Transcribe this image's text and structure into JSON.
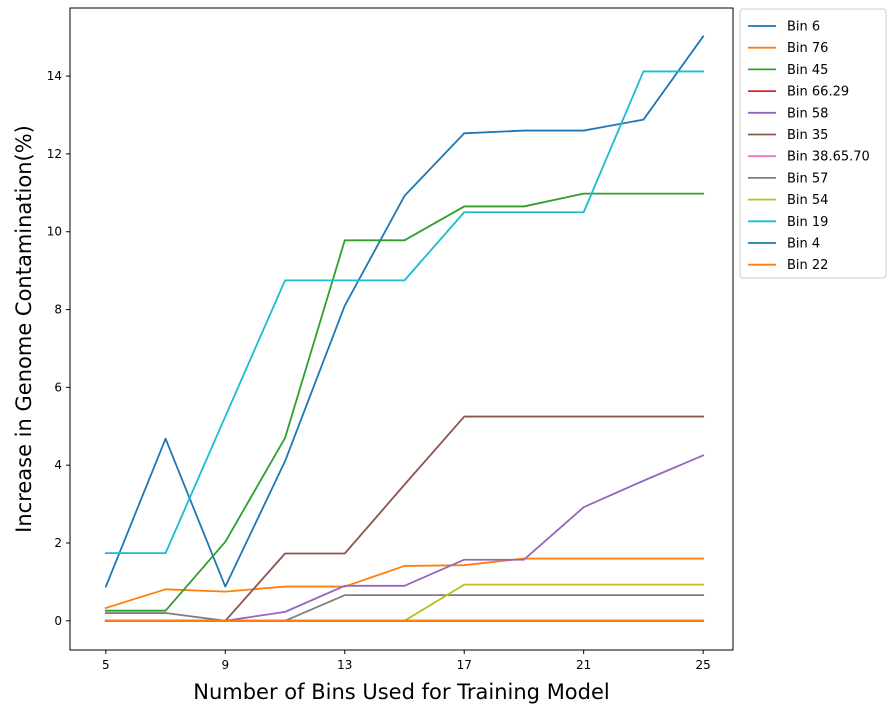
{
  "chart_data": {
    "type": "line",
    "title": "",
    "xlabel": "Number of Bins Used for Training Model",
    "ylabel": "Increase in Genome Contamination(%)",
    "x": [
      5,
      7,
      9,
      11,
      13,
      15,
      17,
      19,
      21,
      23,
      25
    ],
    "xticks": [
      5,
      9,
      13,
      17,
      21,
      25
    ],
    "yticks": [
      0,
      2,
      4,
      6,
      8,
      10,
      12,
      14
    ],
    "xlim": [
      3.8,
      26.0
    ],
    "ylim": [
      -0.75,
      15.75
    ],
    "grid": false,
    "legend_position": "outside-top-right",
    "series": [
      {
        "name": "Bin 6",
        "color": "#1f77b4",
        "values": [
          0.88,
          4.68,
          0.88,
          4.1,
          8.1,
          10.92,
          12.53,
          12.6,
          12.6,
          12.88,
          15.02
        ]
      },
      {
        "name": "Bin 76",
        "color": "#ff7f0e",
        "values": [
          0.33,
          0.81,
          0.75,
          0.88,
          0.88,
          1.41,
          1.43,
          1.6,
          1.6,
          1.6,
          1.6
        ]
      },
      {
        "name": "Bin 45",
        "color": "#2ca02c",
        "values": [
          0.26,
          0.26,
          2.03,
          4.7,
          9.78,
          9.78,
          10.65,
          10.65,
          10.98,
          10.98,
          10.98
        ]
      },
      {
        "name": "Bin 66.29",
        "color": "#d62728",
        "values": [
          0,
          0,
          0,
          0,
          0,
          0,
          0,
          0,
          0,
          0,
          0
        ]
      },
      {
        "name": "Bin 58",
        "color": "#9467bd",
        "values": [
          0,
          0,
          0,
          0.23,
          0.9,
          0.9,
          1.57,
          1.57,
          2.92,
          3.6,
          4.25
        ]
      },
      {
        "name": "Bin 35",
        "color": "#8c564b",
        "values": [
          0,
          0,
          0,
          1.73,
          1.73,
          3.5,
          5.25,
          5.25,
          5.25,
          5.25,
          5.25
        ]
      },
      {
        "name": "Bin 38.65.70",
        "color": "#e377c2",
        "values": [
          0,
          0,
          0,
          0,
          0,
          0,
          0,
          0,
          0,
          0,
          0
        ]
      },
      {
        "name": "Bin 57",
        "color": "#7f7f7f",
        "values": [
          0.2,
          0.2,
          0,
          0,
          0.66,
          0.66,
          0.66,
          0.66,
          0.66,
          0.66,
          0.66
        ]
      },
      {
        "name": "Bin 54",
        "color": "#bcbd22",
        "values": [
          0,
          0,
          0,
          0,
          0,
          0,
          0.93,
          0.93,
          0.93,
          0.93,
          0.93
        ]
      },
      {
        "name": "Bin 19",
        "color": "#17becf",
        "values": [
          1.74,
          1.74,
          5.25,
          8.75,
          8.75,
          8.75,
          10.5,
          10.5,
          10.5,
          14.12,
          14.12
        ]
      },
      {
        "name": "Bin 4",
        "color": "#1f77b4",
        "values": [
          0,
          0,
          0,
          0,
          0,
          0,
          0,
          0,
          0,
          0,
          0
        ]
      },
      {
        "name": "Bin 22",
        "color": "#ff7f0e",
        "values": [
          0,
          0,
          0,
          0,
          0,
          0,
          0,
          0,
          0,
          0,
          0
        ]
      }
    ]
  }
}
